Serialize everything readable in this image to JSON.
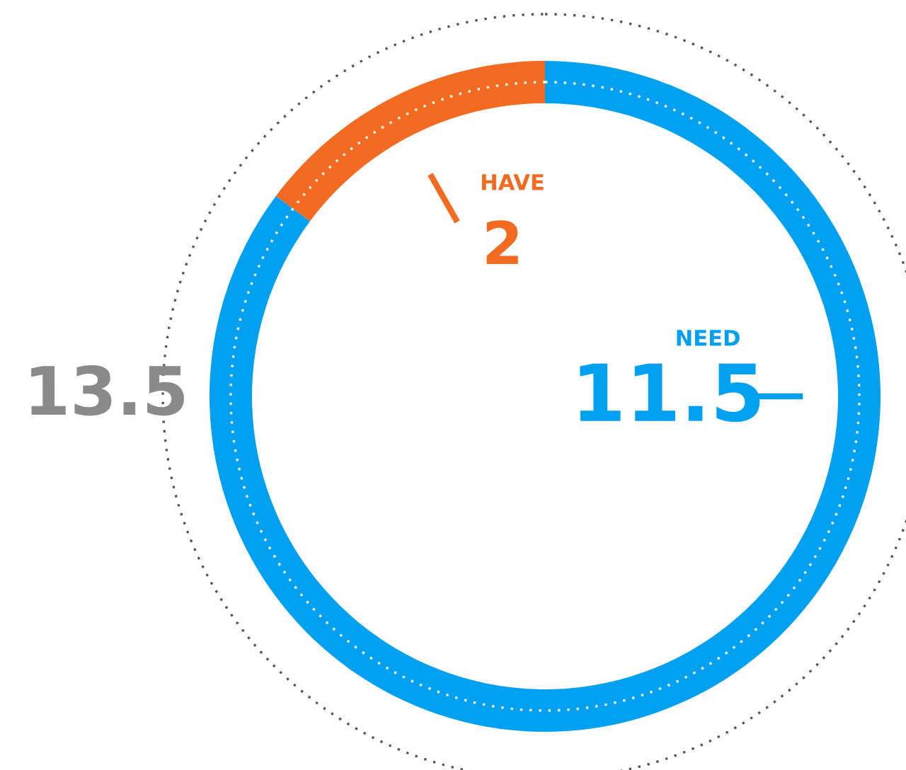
{
  "chart_data": {
    "type": "donut",
    "categories": [
      "HAVE",
      "NEED"
    ],
    "values": [
      2,
      11.5
    ],
    "colors": [
      "#f26b21",
      "#00a0f0"
    ],
    "data_labels": true,
    "annotations": [
      "13.5"
    ]
  }
}
